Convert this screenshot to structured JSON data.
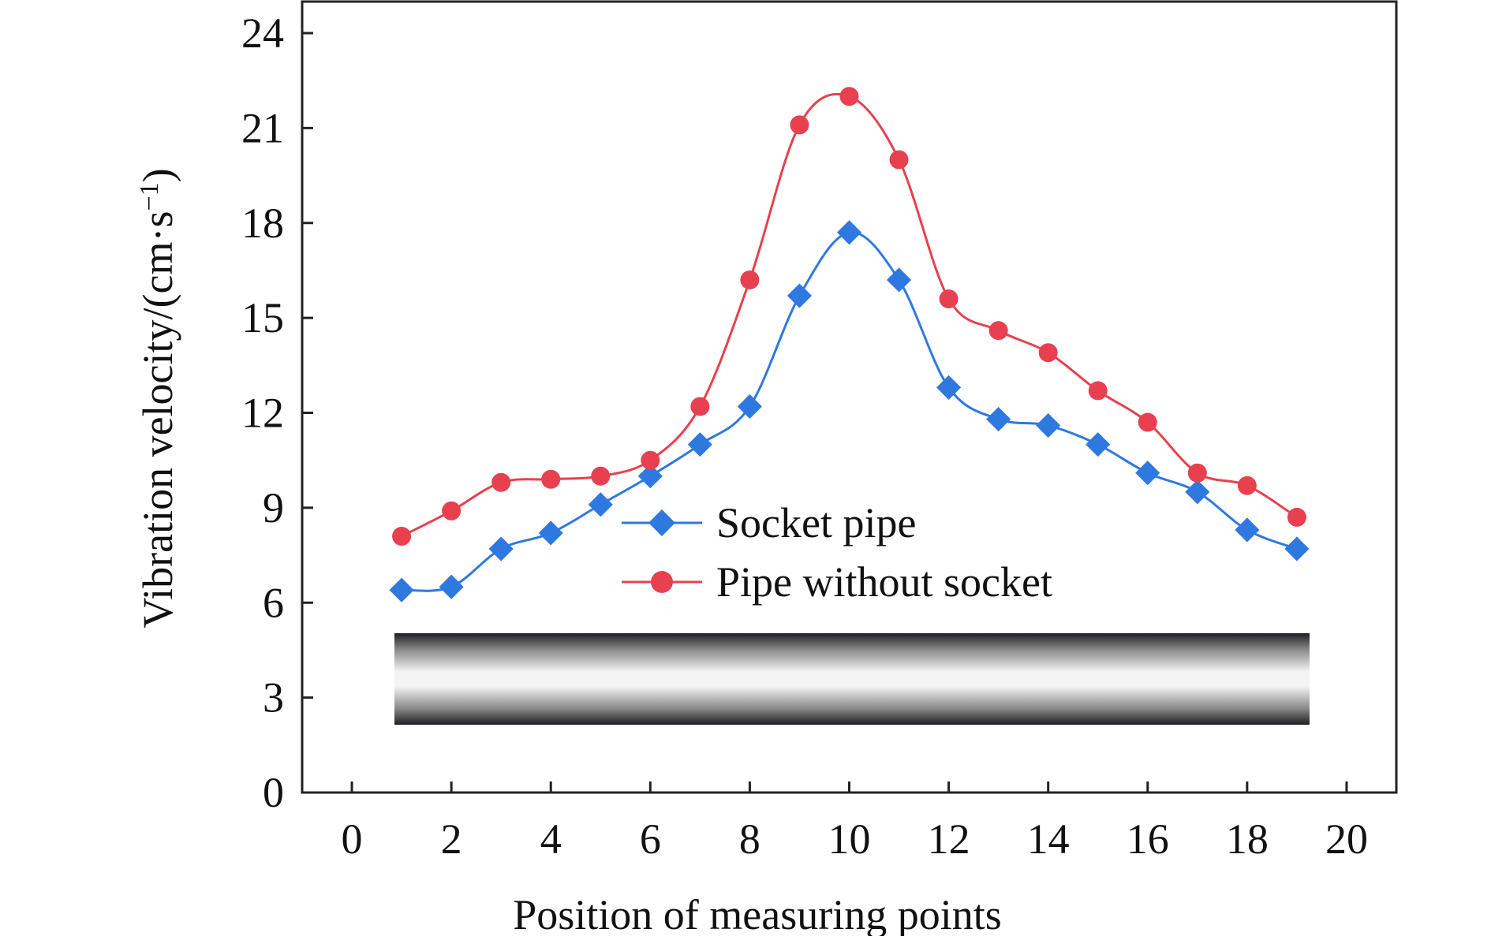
{
  "chart_data": {
    "type": "line",
    "xlabel": "Position of measuring points",
    "ylabel": "Vibration velocity/(cm·s",
    "ylabel_sup": "−1",
    "ylabel_close": ")",
    "xlim": [
      -1,
      21
    ],
    "ylim": [
      0,
      24
    ],
    "xticks": [
      0,
      2,
      4,
      6,
      8,
      10,
      12,
      14,
      16,
      18,
      20
    ],
    "xtick_labels": [
      "0",
      "2",
      "4",
      "6",
      "8",
      "10",
      "12",
      "14",
      "16",
      "18",
      "20"
    ],
    "yticks": [
      0,
      3,
      6,
      9,
      12,
      15,
      18,
      21,
      24
    ],
    "ytick_labels": [
      "0",
      "3",
      "6",
      "9",
      "12",
      "15",
      "18",
      "21",
      "24"
    ],
    "grid": false,
    "legend_position": "center",
    "series": [
      {
        "name": "Socket pipe",
        "marker": "diamond",
        "color": "#2f78e0",
        "x": [
          1,
          2,
          3,
          4,
          5,
          6,
          7,
          8,
          9,
          10,
          11,
          12,
          13,
          14,
          15,
          16,
          17,
          18,
          19
        ],
        "values": [
          6.4,
          6.5,
          7.7,
          8.2,
          9.1,
          10.0,
          11.0,
          12.2,
          15.7,
          17.7,
          16.2,
          12.8,
          11.8,
          11.6,
          11.0,
          10.1,
          9.5,
          8.3,
          7.7
        ]
      },
      {
        "name": "Pipe without socket",
        "marker": "circle",
        "color": "#e8404f",
        "x": [
          1,
          2,
          3,
          4,
          5,
          6,
          7,
          8,
          9,
          10,
          11,
          12,
          13,
          14,
          15,
          16,
          17,
          18,
          19
        ],
        "values": [
          8.1,
          8.9,
          9.8,
          9.9,
          10.0,
          10.5,
          12.2,
          16.2,
          21.1,
          22.0,
          20.0,
          15.6,
          14.6,
          13.9,
          12.7,
          11.7,
          10.1,
          9.7,
          8.7
        ]
      }
    ]
  }
}
